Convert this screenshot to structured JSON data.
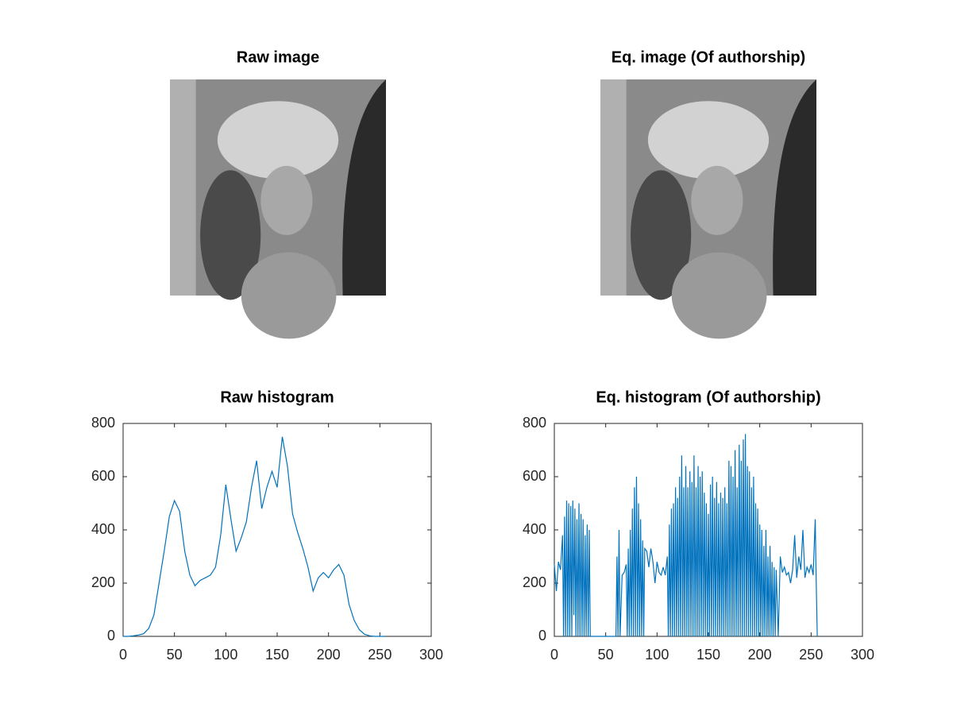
{
  "chart_data": [
    {
      "type": "image",
      "title": "Raw image"
    },
    {
      "type": "image",
      "title": "Eq. image (Of authorship)"
    },
    {
      "type": "line",
      "title": "Raw histogram",
      "color": "#0072bd",
      "xlim": [
        0,
        300
      ],
      "ylim": [
        0,
        800
      ],
      "xticks": [
        0,
        50,
        100,
        150,
        200,
        250,
        300
      ],
      "yticks": [
        0,
        200,
        400,
        600,
        800
      ],
      "x": [
        0,
        5,
        10,
        15,
        20,
        25,
        30,
        35,
        40,
        45,
        50,
        55,
        60,
        65,
        70,
        75,
        80,
        85,
        90,
        95,
        100,
        105,
        110,
        115,
        120,
        125,
        130,
        135,
        140,
        145,
        150,
        155,
        160,
        165,
        170,
        175,
        180,
        185,
        190,
        195,
        200,
        205,
        210,
        215,
        220,
        225,
        230,
        235,
        240,
        245,
        250,
        255
      ],
      "values": [
        0,
        0,
        2,
        5,
        10,
        30,
        80,
        200,
        320,
        450,
        510,
        470,
        320,
        230,
        190,
        210,
        220,
        230,
        260,
        380,
        570,
        440,
        320,
        370,
        430,
        560,
        660,
        480,
        560,
        620,
        560,
        750,
        640,
        460,
        390,
        330,
        260,
        170,
        220,
        240,
        220,
        250,
        270,
        230,
        120,
        60,
        25,
        8,
        2,
        0,
        0,
        0
      ]
    },
    {
      "type": "line",
      "title": "Eq. histogram (Of authorship)",
      "color": "#0072bd",
      "xlim": [
        0,
        300
      ],
      "ylim": [
        0,
        800
      ],
      "xticks": [
        0,
        50,
        100,
        150,
        200,
        250,
        300
      ],
      "yticks": [
        0,
        200,
        400,
        600,
        800
      ],
      "x": [
        0,
        2,
        4,
        6,
        8,
        9,
        10,
        11,
        12,
        13,
        14,
        15,
        16,
        17,
        18,
        19,
        20,
        21,
        22,
        23,
        24,
        25,
        26,
        27,
        28,
        29,
        30,
        31,
        32,
        33,
        34,
        35,
        36,
        40,
        50,
        60,
        61,
        62,
        63,
        64,
        66,
        68,
        70,
        71,
        72,
        73,
        74,
        75,
        76,
        77,
        78,
        79,
        80,
        81,
        82,
        83,
        84,
        85,
        86,
        87,
        88,
        90,
        92,
        94,
        96,
        98,
        100,
        102,
        104,
        106,
        108,
        110,
        111,
        112,
        113,
        114,
        115,
        116,
        117,
        118,
        119,
        120,
        121,
        122,
        123,
        124,
        125,
        126,
        127,
        128,
        129,
        130,
        131,
        132,
        133,
        134,
        135,
        136,
        137,
        138,
        139,
        140,
        141,
        142,
        143,
        144,
        145,
        146,
        147,
        148,
        149,
        150,
        151,
        152,
        153,
        154,
        155,
        156,
        157,
        158,
        159,
        160,
        161,
        162,
        163,
        164,
        165,
        166,
        167,
        168,
        169,
        170,
        171,
        172,
        173,
        174,
        175,
        176,
        177,
        178,
        179,
        180,
        181,
        182,
        183,
        184,
        185,
        186,
        187,
        188,
        189,
        190,
        191,
        192,
        193,
        194,
        195,
        196,
        197,
        198,
        199,
        200,
        201,
        202,
        203,
        204,
        205,
        206,
        207,
        208,
        209,
        210,
        211,
        212,
        213,
        214,
        215,
        216,
        218,
        220,
        222,
        224,
        226,
        228,
        230,
        232,
        234,
        236,
        238,
        240,
        242,
        244,
        246,
        248,
        250,
        252,
        254,
        255,
        256
      ],
      "values": [
        270,
        170,
        280,
        250,
        380,
        0,
        450,
        0,
        510,
        0,
        500,
        0,
        490,
        0,
        510,
        80,
        480,
        0,
        440,
        0,
        500,
        0,
        460,
        0,
        440,
        0,
        380,
        0,
        420,
        0,
        400,
        0,
        0,
        0,
        0,
        0,
        300,
        0,
        400,
        0,
        230,
        240,
        270,
        0,
        330,
        0,
        400,
        0,
        480,
        0,
        560,
        0,
        600,
        0,
        500,
        0,
        440,
        0,
        360,
        0,
        330,
        320,
        260,
        330,
        280,
        200,
        280,
        240,
        230,
        260,
        230,
        300,
        0,
        420,
        0,
        480,
        0,
        500,
        0,
        560,
        0,
        520,
        0,
        600,
        0,
        680,
        0,
        560,
        0,
        640,
        0,
        560,
        0,
        620,
        0,
        580,
        0,
        680,
        0,
        560,
        0,
        640,
        0,
        600,
        0,
        620,
        0,
        540,
        0,
        500,
        0,
        460,
        0,
        570,
        0,
        600,
        0,
        520,
        0,
        580,
        0,
        500,
        0,
        540,
        0,
        520,
        0,
        560,
        0,
        500,
        0,
        660,
        0,
        640,
        0,
        600,
        0,
        700,
        0,
        560,
        0,
        720,
        0,
        660,
        0,
        740,
        0,
        760,
        0,
        640,
        0,
        620,
        0,
        560,
        0,
        600,
        0,
        500,
        0,
        480,
        0,
        420,
        0,
        400,
        0,
        340,
        0,
        400,
        0,
        300,
        0,
        340,
        0,
        280,
        0,
        260,
        0,
        250,
        0,
        300,
        240,
        260,
        230,
        240,
        200,
        250,
        380,
        220,
        300,
        250,
        400,
        220,
        260,
        240,
        270,
        230,
        440,
        200,
        0
      ]
    }
  ]
}
